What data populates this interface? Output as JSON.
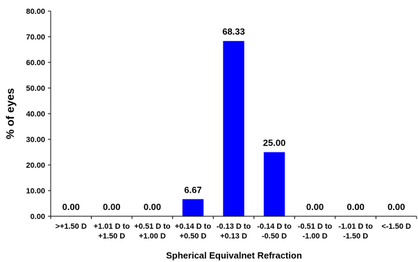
{
  "chart_data": {
    "type": "bar",
    "categories": [
      [
        ">+1.50 D"
      ],
      [
        "+1.01 D to",
        "+1.50 D"
      ],
      [
        "+0.51 D to",
        "+1.00 D"
      ],
      [
        "+0.14 D to",
        "+0.50 D"
      ],
      [
        "-0.13 D to",
        "+0.13 D"
      ],
      [
        "-0.14 D to",
        "-0.50 D"
      ],
      [
        "-0.51 D to",
        "-1.00 D"
      ],
      [
        "-1.01 D to",
        "-1.50 D"
      ],
      [
        "<-1.50 D"
      ]
    ],
    "values": [
      0.0,
      0.0,
      0.0,
      6.67,
      68.33,
      25.0,
      0.0,
      0.0,
      0.0
    ],
    "data_labels": [
      "0.00",
      "0.00",
      "0.00",
      "6.67",
      "68.33",
      "25.00",
      "0.00",
      "0.00",
      "0.00"
    ],
    "xlabel": "Spherical Equivalnet Refraction",
    "ylabel": "% of eyes",
    "ylim": [
      0,
      80
    ],
    "yticks": [
      "0.00",
      "10.00",
      "20.00",
      "30.00",
      "40.00",
      "50.00",
      "60.00",
      "70.00",
      "80.00"
    ],
    "bar_color": "#0000ff",
    "grid": false
  }
}
